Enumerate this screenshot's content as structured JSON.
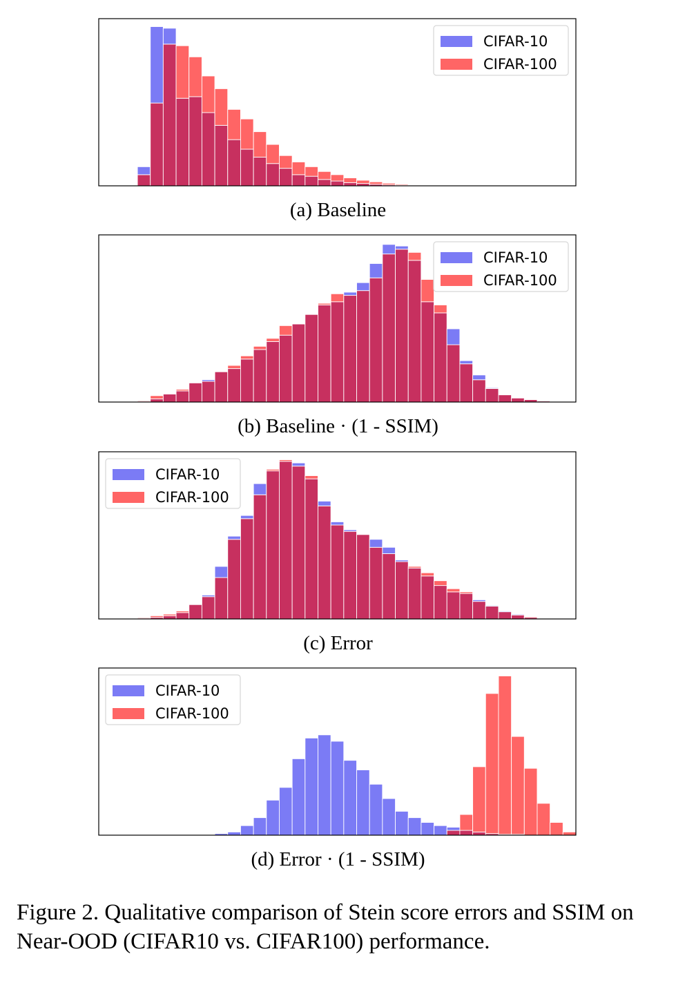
{
  "figure_caption": "Figure 2. Qualitative comparison of Stein score errors and SSIM on Near-OOD (CIFAR10 vs. CIFAR100) performance.",
  "colors": {
    "cifar10": "#7b7bf5",
    "cifar100": "#ff6565",
    "overlap": "#c7305f"
  },
  "chart_data": [
    {
      "type": "histogram",
      "subcaption": "(a) Baseline",
      "legend_position": "top-right",
      "ylim": [
        0,
        105
      ],
      "x_start_bin": 3,
      "n_bins": 37,
      "series": [
        {
          "name": "CIFAR-10",
          "values": [
            12,
            100,
            99,
            55,
            56,
            46,
            38,
            29,
            23,
            18,
            14,
            11,
            7,
            6,
            4,
            3,
            2,
            1.5,
            1,
            0.6,
            0.4,
            0.2
          ]
        },
        {
          "name": "CIFAR-100",
          "values": [
            7,
            52,
            89,
            88,
            81,
            69,
            61,
            48,
            42,
            34,
            26,
            19,
            15,
            12,
            9,
            7,
            5,
            3.5,
            2.5,
            1.6,
            1,
            0.6,
            0.3,
            0.2
          ]
        }
      ]
    },
    {
      "type": "histogram",
      "subcaption": "(b) Baseline · (1 - SSIM)",
      "legend_position": "top-right",
      "ylim": [
        0,
        105
      ],
      "x_start_bin": 3,
      "n_bins": 37,
      "series": [
        {
          "name": "CIFAR-10",
          "values": [
            0.5,
            2,
            5,
            7,
            12,
            14,
            19,
            21,
            27,
            33,
            38,
            42,
            49,
            55,
            61,
            63,
            69,
            75,
            87,
            99,
            98,
            89,
            63,
            56,
            46,
            26,
            17,
            9,
            4.5,
            2.5,
            1.5,
            0.8,
            0.4
          ]
        },
        {
          "name": "CIFAR-100",
          "values": [
            1,
            4,
            5,
            8,
            12,
            13,
            19,
            23,
            29,
            35,
            40,
            48,
            49,
            55,
            62,
            68,
            67,
            70,
            78,
            93,
            96,
            94,
            77,
            61,
            36,
            24,
            14,
            8.5,
            4.5,
            2.5,
            1.5,
            0.6
          ]
        }
      ]
    },
    {
      "type": "histogram",
      "subcaption": "(c) Error",
      "legend_position": "top-left",
      "ylim": [
        0,
        105
      ],
      "x_start_bin": 3,
      "n_bins": 37,
      "series": [
        {
          "name": "CIFAR-10",
          "values": [
            0.5,
            1,
            2,
            4,
            9,
            15,
            33,
            52,
            65,
            85,
            93,
            99,
            98,
            88,
            74,
            61,
            56,
            53,
            50,
            45,
            37,
            32,
            27,
            21,
            17,
            16,
            12,
            8.5,
            5,
            3,
            1
          ]
        },
        {
          "name": "CIFAR-100",
          "values": [
            1,
            2,
            3,
            5,
            9,
            14,
            26,
            50,
            63,
            78,
            94,
            100,
            96,
            90,
            71,
            59,
            55,
            53,
            45,
            41,
            36,
            33,
            29,
            24,
            19,
            17,
            11,
            8,
            4.5,
            2.5,
            1.5
          ]
        }
      ]
    },
    {
      "type": "histogram",
      "subcaption": "(d) Error · (1 - SSIM)",
      "legend_position": "top-left",
      "ylim": [
        0,
        105
      ],
      "x_start_bin": 3,
      "n_bins": 37,
      "series": [
        {
          "name": "CIFAR-10",
          "values": [
            0,
            0,
            0,
            0,
            0,
            0,
            1,
            2,
            6,
            11,
            22,
            30,
            48,
            61,
            63,
            59,
            47,
            41,
            32,
            23,
            15,
            11,
            8,
            6,
            5,
            3,
            2,
            1,
            0.5,
            0.5
          ]
        },
        {
          "name": "CIFAR-100",
          "values": [
            0,
            0,
            0,
            0,
            0,
            0,
            0,
            0,
            0,
            0,
            0,
            0,
            0,
            0,
            0,
            0,
            0,
            0,
            0,
            0,
            0,
            0,
            0,
            0,
            3,
            13,
            43,
            89,
            100,
            62,
            42,
            20,
            8,
            2
          ]
        }
      ]
    }
  ]
}
